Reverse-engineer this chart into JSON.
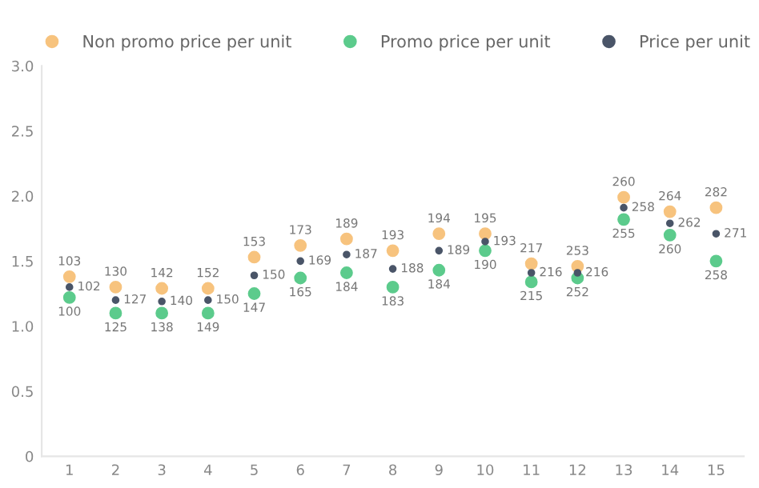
{
  "chart_data": {
    "type": "scatter",
    "categories": [
      "1",
      "2",
      "3",
      "4",
      "5",
      "6",
      "7",
      "8",
      "9",
      "10",
      "11",
      "12",
      "13",
      "14",
      "15"
    ],
    "ylim": [
      0,
      3.0
    ],
    "yticks": [
      0,
      {
        "value": 0.5,
        "label": "0.5"
      },
      {
        "value": 1,
        "label": "1.0"
      },
      {
        "value": 1.5,
        "label": "1.5"
      },
      {
        "value": 2,
        "label": "2.0"
      },
      {
        "value": 2.5,
        "label": "2.5"
      },
      {
        "value": 3,
        "label": "3.0"
      }
    ],
    "grid": false,
    "legend": "top",
    "marker": "circle",
    "series": [
      {
        "name": "Non promo price per unit",
        "color": "#f7c37e",
        "values": [
          1.38,
          1.3,
          1.29,
          1.29,
          1.53,
          1.62,
          1.67,
          1.58,
          1.71,
          1.71,
          1.48,
          1.46,
          1.99,
          1.88,
          1.91
        ]
      },
      {
        "name": "Promo price per unit",
        "color": "#5ccb8c",
        "values": [
          1.22,
          1.1,
          1.1,
          1.1,
          1.25,
          1.37,
          1.41,
          1.3,
          1.43,
          1.58,
          1.34,
          1.37,
          1.82,
          1.7,
          1.5
        ]
      },
      {
        "name": "Price per unit",
        "color": "#4a5568",
        "values": [
          1.3,
          1.2,
          1.19,
          1.2,
          1.39,
          1.5,
          1.55,
          1.44,
          1.58,
          1.65,
          1.41,
          1.41,
          1.91,
          1.79,
          1.71
        ]
      }
    ],
    "annotations": [
      {
        "text": "103",
        "x": "1",
        "y": 1.38
      },
      {
        "text": "130",
        "x": "2",
        "y": 1.3
      },
      {
        "text": "142",
        "x": "3",
        "y": 1.29
      },
      {
        "text": "152",
        "x": "4",
        "y": 1.29
      },
      {
        "text": "153",
        "x": "5",
        "y": 1.53
      },
      {
        "text": "173",
        "x": "6",
        "y": 1.62
      },
      {
        "text": "189",
        "x": "7",
        "y": 1.67
      },
      {
        "text": "193",
        "x": "8",
        "y": 1.58
      },
      {
        "text": "194",
        "x": "9",
        "y": 1.71
      },
      {
        "text": "195",
        "x": "10",
        "y": 1.71
      },
      {
        "text": "217",
        "x": "11",
        "y": 1.48
      },
      {
        "text": "253",
        "x": "12",
        "y": 1.46
      },
      {
        "text": "260",
        "x": "13",
        "y": 1.99
      },
      {
        "text": "264",
        "x": "14",
        "y": 1.88
      },
      {
        "text": "282",
        "x": "15",
        "y": 1.91
      },
      {
        "text": "100",
        "x": "1",
        "y": 1.22
      },
      {
        "text": "125",
        "x": "2",
        "y": 1.1
      },
      {
        "text": "138",
        "x": "3",
        "y": 1.1
      },
      {
        "text": "149",
        "x": "4",
        "y": 1.1
      },
      {
        "text": "147",
        "x": "5",
        "y": 1.25
      },
      {
        "text": "165",
        "x": "6",
        "y": 1.37
      },
      {
        "text": "184",
        "x": "7",
        "y": 1.41
      },
      {
        "text": "183",
        "x": "8",
        "y": 1.3
      },
      {
        "text": "184",
        "x": "9",
        "y": 1.43
      },
      {
        "text": "190",
        "x": "10",
        "y": 1.58
      },
      {
        "text": "215",
        "x": "11",
        "y": 1.34
      },
      {
        "text": "252",
        "x": "12",
        "y": 1.37
      },
      {
        "text": "255",
        "x": "13",
        "y": 1.82
      },
      {
        "text": "260",
        "x": "14",
        "y": 1.7
      },
      {
        "text": "258",
        "x": "15",
        "y": 1.5
      },
      {
        "text": "102",
        "x": "1",
        "y": 1.3
      },
      {
        "text": "127",
        "x": "2",
        "y": 1.2
      },
      {
        "text": "140",
        "x": "3",
        "y": 1.19
      },
      {
        "text": "150",
        "x": "4",
        "y": 1.2
      },
      {
        "text": "150",
        "x": "5",
        "y": 1.39
      },
      {
        "text": "169",
        "x": "6",
        "y": 1.5
      },
      {
        "text": "187",
        "x": "7",
        "y": 1.55
      },
      {
        "text": "188",
        "x": "8",
        "y": 1.44
      },
      {
        "text": "189",
        "x": "9",
        "y": 1.58
      },
      {
        "text": "193",
        "x": "10",
        "y": 1.65
      },
      {
        "text": "216",
        "x": "11",
        "y": 1.41
      },
      {
        "text": "216",
        "x": "12",
        "y": 1.41
      },
      {
        "text": "258",
        "x": "13",
        "y": 1.91
      },
      {
        "text": "262",
        "x": "14",
        "y": 1.79
      },
      {
        "text": "271",
        "x": "15",
        "y": 1.71
      }
    ]
  }
}
